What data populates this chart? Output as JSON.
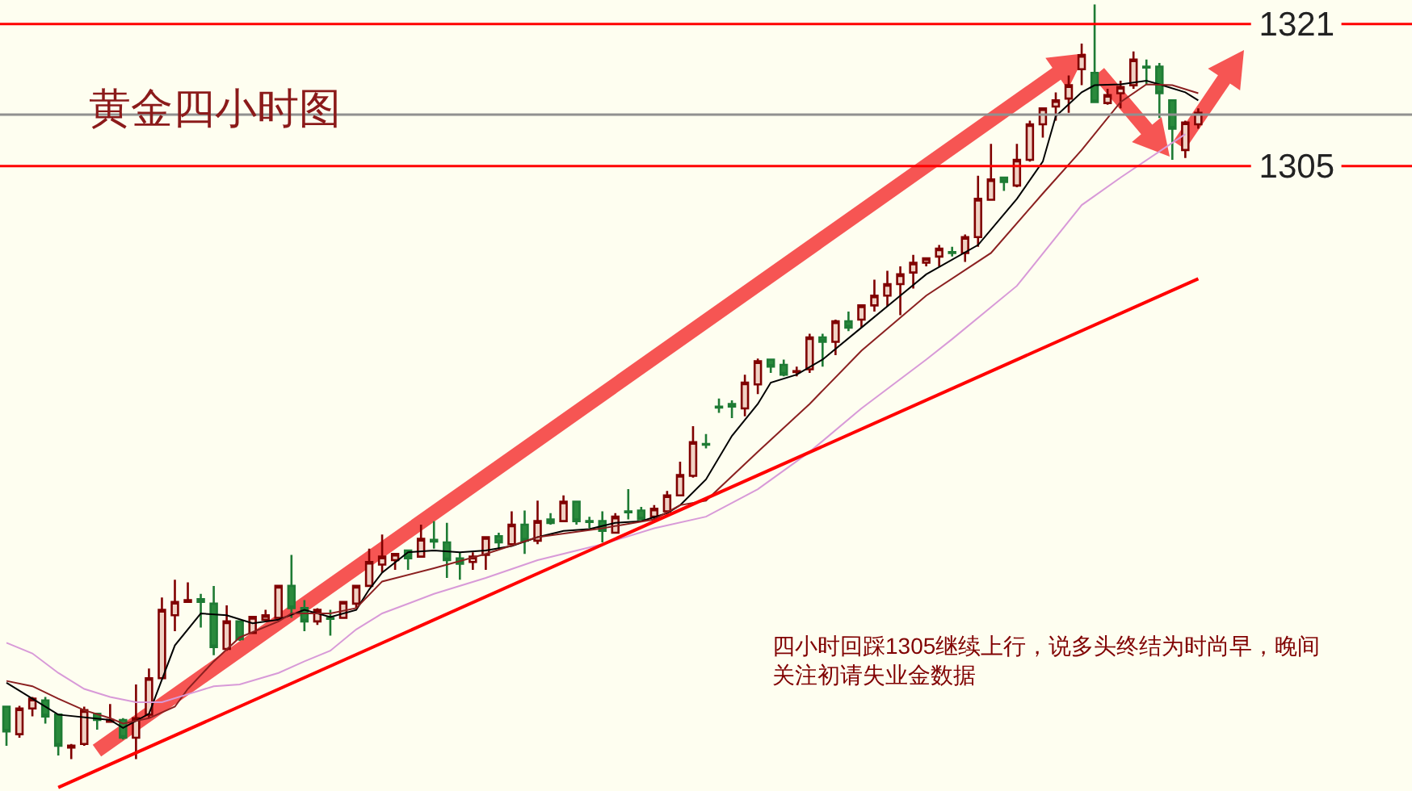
{
  "chart_data": {
    "type": "candlestick",
    "title": "黄金四小时图",
    "annotations": [
      "四小时回踩1305继续上行，说多头终结为时尚早，晚间关注初请失业金数据"
    ],
    "categories": [
      null,
      null,
      null,
      null,
      null,
      null,
      null,
      null,
      null,
      null,
      null,
      null,
      null,
      null,
      null,
      null,
      null,
      null,
      null,
      null,
      null,
      null,
      null,
      null,
      null,
      null,
      null,
      null,
      null,
      null,
      null,
      null,
      null,
      null,
      null,
      null,
      null,
      null,
      null,
      null,
      null,
      null,
      null,
      null,
      null,
      null,
      null,
      null,
      null,
      null,
      null,
      null,
      null,
      null,
      null,
      null,
      null,
      null,
      null,
      null,
      null,
      null,
      null,
      null,
      null,
      null,
      null,
      null,
      null,
      null,
      null,
      null,
      null,
      null,
      null,
      null,
      null,
      null,
      null,
      null,
      null,
      null,
      null,
      null,
      null,
      null,
      null,
      null,
      null,
      null,
      null,
      null,
      null
    ],
    "ohlc": [
      [
        1244.1,
        1244.1,
        1239.7,
        1241.3
      ],
      [
        1241.0,
        1244.2,
        1240.6,
        1243.9
      ],
      [
        1243.9,
        1245.2,
        1243.0,
        1245.0
      ],
      [
        1244.8,
        1245.2,
        1242.2,
        1243.0
      ],
      [
        1243.2,
        1243.3,
        1238.6,
        1239.7
      ],
      [
        1239.5,
        1239.9,
        1238.2,
        1239.7
      ],
      [
        1239.9,
        1244.1,
        1239.7,
        1243.7
      ],
      [
        1243.3,
        1243.3,
        1241.5,
        1242.6
      ],
      [
        1242.4,
        1244.4,
        1242.4,
        1242.6
      ],
      [
        1242.6,
        1242.8,
        1240.4,
        1240.6
      ],
      [
        1240.6,
        1246.6,
        1238.2,
        1242.8
      ],
      [
        1243.2,
        1248.4,
        1242.8,
        1247.3
      ],
      [
        1247.3,
        1256.4,
        1247.2,
        1255.0
      ],
      [
        1254.4,
        1258.4,
        1252.6,
        1255.9
      ],
      [
        1255.9,
        1258.1,
        1255.9,
        1256.1
      ],
      [
        1256.2,
        1256.8,
        1253.0,
        1255.9
      ],
      [
        1255.7,
        1257.7,
        1249.9,
        1250.8
      ],
      [
        1250.6,
        1255.5,
        1250.4,
        1253.7
      ],
      [
        1253.7,
        1253.7,
        1251.5,
        1251.7
      ],
      [
        1252.4,
        1254.2,
        1252.4,
        1254.2
      ],
      [
        1253.9,
        1255.0,
        1253.9,
        1254.4
      ],
      [
        1254.1,
        1257.7,
        1254.1,
        1257.7
      ],
      [
        1257.7,
        1261.2,
        1254.1,
        1255.2
      ],
      [
        1255.2,
        1256.1,
        1252.6,
        1253.7
      ],
      [
        1253.7,
        1255.2,
        1253.3,
        1255.0
      ],
      [
        1254.1,
        1255.0,
        1252.1,
        1254.0
      ],
      [
        1254.1,
        1255.9,
        1254.1,
        1255.9
      ],
      [
        1255.7,
        1257.7,
        1255.2,
        1257.7
      ],
      [
        1257.7,
        1261.9,
        1257.7,
        1260.4
      ],
      [
        1260.1,
        1263.5,
        1259.2,
        1261.0
      ],
      [
        1260.6,
        1261.3,
        1259.5,
        1261.3
      ],
      [
        1261.7,
        1261.7,
        1259.5,
        1260.8
      ],
      [
        1261.0,
        1264.6,
        1261.0,
        1263.0
      ],
      [
        1262.9,
        1265.0,
        1261.9,
        1262.7
      ],
      [
        1262.6,
        1264.8,
        1258.6,
        1260.6
      ],
      [
        1260.8,
        1261.5,
        1258.4,
        1260.2
      ],
      [
        1260.4,
        1261.5,
        1259.5,
        1261.0
      ],
      [
        1261.2,
        1263.3,
        1259.5,
        1263.2
      ],
      [
        1263.3,
        1263.7,
        1261.9,
        1262.6
      ],
      [
        1262.4,
        1266.1,
        1262.4,
        1264.6
      ],
      [
        1264.6,
        1266.2,
        1261.3,
        1262.8
      ],
      [
        1262.8,
        1267.3,
        1262.4,
        1265.0
      ],
      [
        1265.2,
        1265.9,
        1264.6,
        1264.8
      ],
      [
        1265.0,
        1267.9,
        1265.0,
        1267.2
      ],
      [
        1267.2,
        1267.2,
        1264.6,
        1265.0
      ],
      [
        1265.0,
        1265.5,
        1264.2,
        1264.9
      ],
      [
        1265.0,
        1266.1,
        1262.6,
        1263.9
      ],
      [
        1263.7,
        1265.9,
        1263.7,
        1265.5
      ],
      [
        1266.1,
        1268.6,
        1265.2,
        1266.0
      ],
      [
        1266.2,
        1266.6,
        1265.2,
        1265.2
      ],
      [
        1265.5,
        1266.8,
        1265.2,
        1266.4
      ],
      [
        1266.1,
        1268.4,
        1266.1,
        1267.9
      ],
      [
        1267.9,
        1271.7,
        1267.9,
        1270.2
      ],
      [
        1270.1,
        1275.7,
        1269.9,
        1273.9
      ],
      [
        1273.7,
        1274.8,
        1273.2,
        1273.6
      ],
      [
        1277.9,
        1278.8,
        1277.2,
        1277.8
      ],
      [
        1278.2,
        1278.6,
        1276.6,
        1277.9
      ],
      [
        1277.7,
        1281.5,
        1276.8,
        1280.6
      ],
      [
        1280.4,
        1283.3,
        1279.3,
        1283.0
      ],
      [
        1283.2,
        1283.3,
        1281.7,
        1282.4
      ],
      [
        1282.6,
        1283.2,
        1281.3,
        1281.5
      ],
      [
        1281.8,
        1282.4,
        1281.3,
        1281.9
      ],
      [
        1282.1,
        1286.1,
        1281.7,
        1285.7
      ],
      [
        1285.7,
        1286.1,
        1282.4,
        1285.2
      ],
      [
        1285.2,
        1287.7,
        1283.7,
        1287.5
      ],
      [
        1287.5,
        1288.6,
        1286.4,
        1286.8
      ],
      [
        1287.7,
        1289.3,
        1286.8,
        1289.3
      ],
      [
        1289.3,
        1292.2,
        1288.6,
        1290.4
      ],
      [
        1290.4,
        1293.2,
        1289.2,
        1291.7
      ],
      [
        1291.7,
        1293.7,
        1288.2,
        1292.8
      ],
      [
        1293.0,
        1295.0,
        1291.2,
        1294.1
      ],
      [
        1294.1,
        1294.6,
        1293.7,
        1294.6
      ],
      [
        1294.8,
        1296.1,
        1293.7,
        1295.7
      ],
      [
        1295.3,
        1295.9,
        1294.8,
        1295.2
      ],
      [
        1295.2,
        1297.3,
        1294.2,
        1297.0
      ],
      [
        1297.0,
        1303.9,
        1295.9,
        1301.3
      ],
      [
        1301.2,
        1307.5,
        1301.2,
        1303.5
      ],
      [
        1303.7,
        1303.7,
        1302.2,
        1303.2
      ],
      [
        1302.8,
        1307.5,
        1302.6,
        1305.7
      ],
      [
        1305.7,
        1310.1,
        1305.5,
        1309.7
      ],
      [
        1309.7,
        1311.5,
        1308.2,
        1311.5
      ],
      [
        1311.7,
        1313.3,
        1310.1,
        1312.4
      ],
      [
        1312.6,
        1315.2,
        1311.0,
        1314.1
      ],
      [
        1315.9,
        1318.8,
        1314.1,
        1317.5
      ],
      [
        1315.5,
        1323.2,
        1312.1,
        1312.2
      ],
      [
        1312.1,
        1313.7,
        1311.9,
        1313.0
      ],
      [
        1313.2,
        1314.6,
        1311.5,
        1313.9
      ],
      [
        1314.1,
        1317.9,
        1313.7,
        1317.0
      ],
      [
        1316.2,
        1317.0,
        1314.2,
        1316.1
      ],
      [
        1316.2,
        1316.6,
        1310.4,
        1313.2
      ],
      [
        1312.4,
        1312.4,
        1305.7,
        1309.2
      ],
      [
        1306.8,
        1310.1,
        1305.9,
        1309.9
      ],
      [
        1309.7,
        1311.5,
        1309.2,
        1311.0
      ]
    ],
    "series": [
      {
        "type": "line",
        "color": "#000000",
        "values": [
          1246.8,
          null,
          null,
          null,
          1243.2,
          null,
          null,
          null,
          1242.6,
          1241.7,
          null,
          1243.3,
          null,
          1251.0,
          null,
          1254.6,
          null,
          1254.4,
          null,
          1253.5,
          null,
          1253.9,
          null,
          1255.0,
          null,
          1254.2,
          null,
          1255.0,
          1257.3,
          1259.2,
          null,
          1261.5,
          null,
          1261.7,
          null,
          1261.5,
          null,
          1261.7,
          null,
          1262.2,
          null,
          1263.2,
          null,
          1263.9,
          null,
          1264.1,
          null,
          1264.8,
          null,
          1265.0,
          null,
          1265.9,
          1266.8,
          null,
          1269.7,
          null,
          1274.6,
          null,
          1278.2,
          1280.6,
          null,
          1281.5,
          null,
          1283.2,
          null,
          null,
          1286.8,
          null,
          null,
          1290.4,
          null,
          1292.8,
          null,
          null,
          null,
          1296.1,
          null,
          null,
          1301.3,
          null,
          1305.5,
          1310.6,
          null,
          1313.3,
          1314.1,
          null,
          1314.2,
          null,
          1314.6,
          1314.2,
          null,
          1313.3,
          1312.4
        ]
      },
      {
        "type": "line",
        "color": "#8b2020",
        "values": [
          1247.0,
          null,
          1246.4,
          null,
          1245.0,
          null,
          1243.7,
          null,
          1242.8,
          1242.2,
          null,
          1242.8,
          null,
          1244.1,
          1246.1,
          null,
          1249.2,
          null,
          1251.9,
          null,
          null,
          1253.7,
          1254.6,
          null,
          null,
          1254.6,
          null,
          1255.2,
          null,
          1258.2,
          null,
          null,
          null,
          1259.7,
          null,
          null,
          null,
          1261.3,
          null,
          null,
          null,
          1263.2,
          null,
          null,
          null,
          null,
          1264.2,
          null,
          null,
          null,
          1265.2,
          null,
          1266.8,
          null,
          1267.3,
          null,
          null,
          null,
          1272.8,
          null,
          null,
          null,
          1278.2,
          null,
          null,
          null,
          1284.2,
          null,
          null,
          null,
          null,
          1290.4,
          null,
          null,
          null,
          null,
          1295.2,
          null,
          null,
          null,
          1301.9,
          null,
          null,
          1306.8,
          null,
          null,
          1312.2,
          null,
          1314.2,
          null,
          1314.1,
          null,
          1313.2
        ]
      },
      {
        "type": "line",
        "color": "#d89ad8",
        "values": [
          1251.3,
          null,
          1250.1,
          null,
          1247.9,
          null,
          1246.1,
          null,
          1245.2,
          null,
          1244.6,
          null,
          1244.6,
          null,
          1245.5,
          null,
          1246.4,
          null,
          1246.6,
          null,
          null,
          1247.9,
          null,
          1249.2,
          null,
          1250.4,
          null,
          1252.8,
          null,
          1254.6,
          null,
          null,
          null,
          1256.8,
          null,
          null,
          null,
          1258.6,
          null,
          null,
          null,
          1260.6,
          null,
          null,
          null,
          null,
          1262.4,
          null,
          null,
          null,
          1264.2,
          null,
          null,
          null,
          1265.5,
          null,
          null,
          null,
          1268.6,
          null,
          null,
          null,
          1272.8,
          null,
          null,
          null,
          1277.7,
          null,
          null,
          null,
          null,
          1283.2,
          null,
          1285.5,
          null,
          null,
          null,
          null,
          1291.5,
          null,
          null,
          null,
          null,
          1300.6,
          null,
          null,
          1303.7,
          null,
          null,
          null,
          null,
          1308.6,
          null
        ]
      },
      {
        "type": "line",
        "color": "#ff0000",
        "values": [
          null,
          null,
          null,
          null,
          1235.0,
          null,
          null,
          null,
          null,
          null,
          null,
          null,
          null,
          null,
          null,
          null,
          null,
          null,
          null,
          null,
          null,
          null,
          null,
          null,
          null,
          null,
          null,
          null,
          null,
          null,
          null,
          null,
          null,
          null,
          null,
          null,
          null,
          null,
          null,
          null,
          null,
          null,
          null,
          null,
          null,
          null,
          null,
          null,
          null,
          null,
          null,
          null,
          null,
          null,
          null,
          null,
          null,
          null,
          null,
          null,
          null,
          null,
          null,
          null,
          null,
          null,
          null,
          null,
          null,
          null,
          null,
          null,
          null,
          null,
          null,
          null,
          null,
          null,
          null,
          null,
          null,
          null,
          null,
          null,
          null,
          null,
          null,
          null,
          null,
          null,
          null,
          null,
          1292.3
        ]
      }
    ],
    "yticks": [
      1305,
      1321
    ],
    "ref_lines": [
      {
        "axis": "y",
        "value": 1321,
        "color": "#ff0000"
      },
      {
        "axis": "y",
        "value": 1305,
        "color": "#ff0000"
      },
      {
        "axis": "y",
        "value": 1310.8,
        "color": "#909090"
      }
    ],
    "ylim": [
      1234.6,
      1323.7
    ],
    "tick_labels": "y",
    "grid": false
  }
}
